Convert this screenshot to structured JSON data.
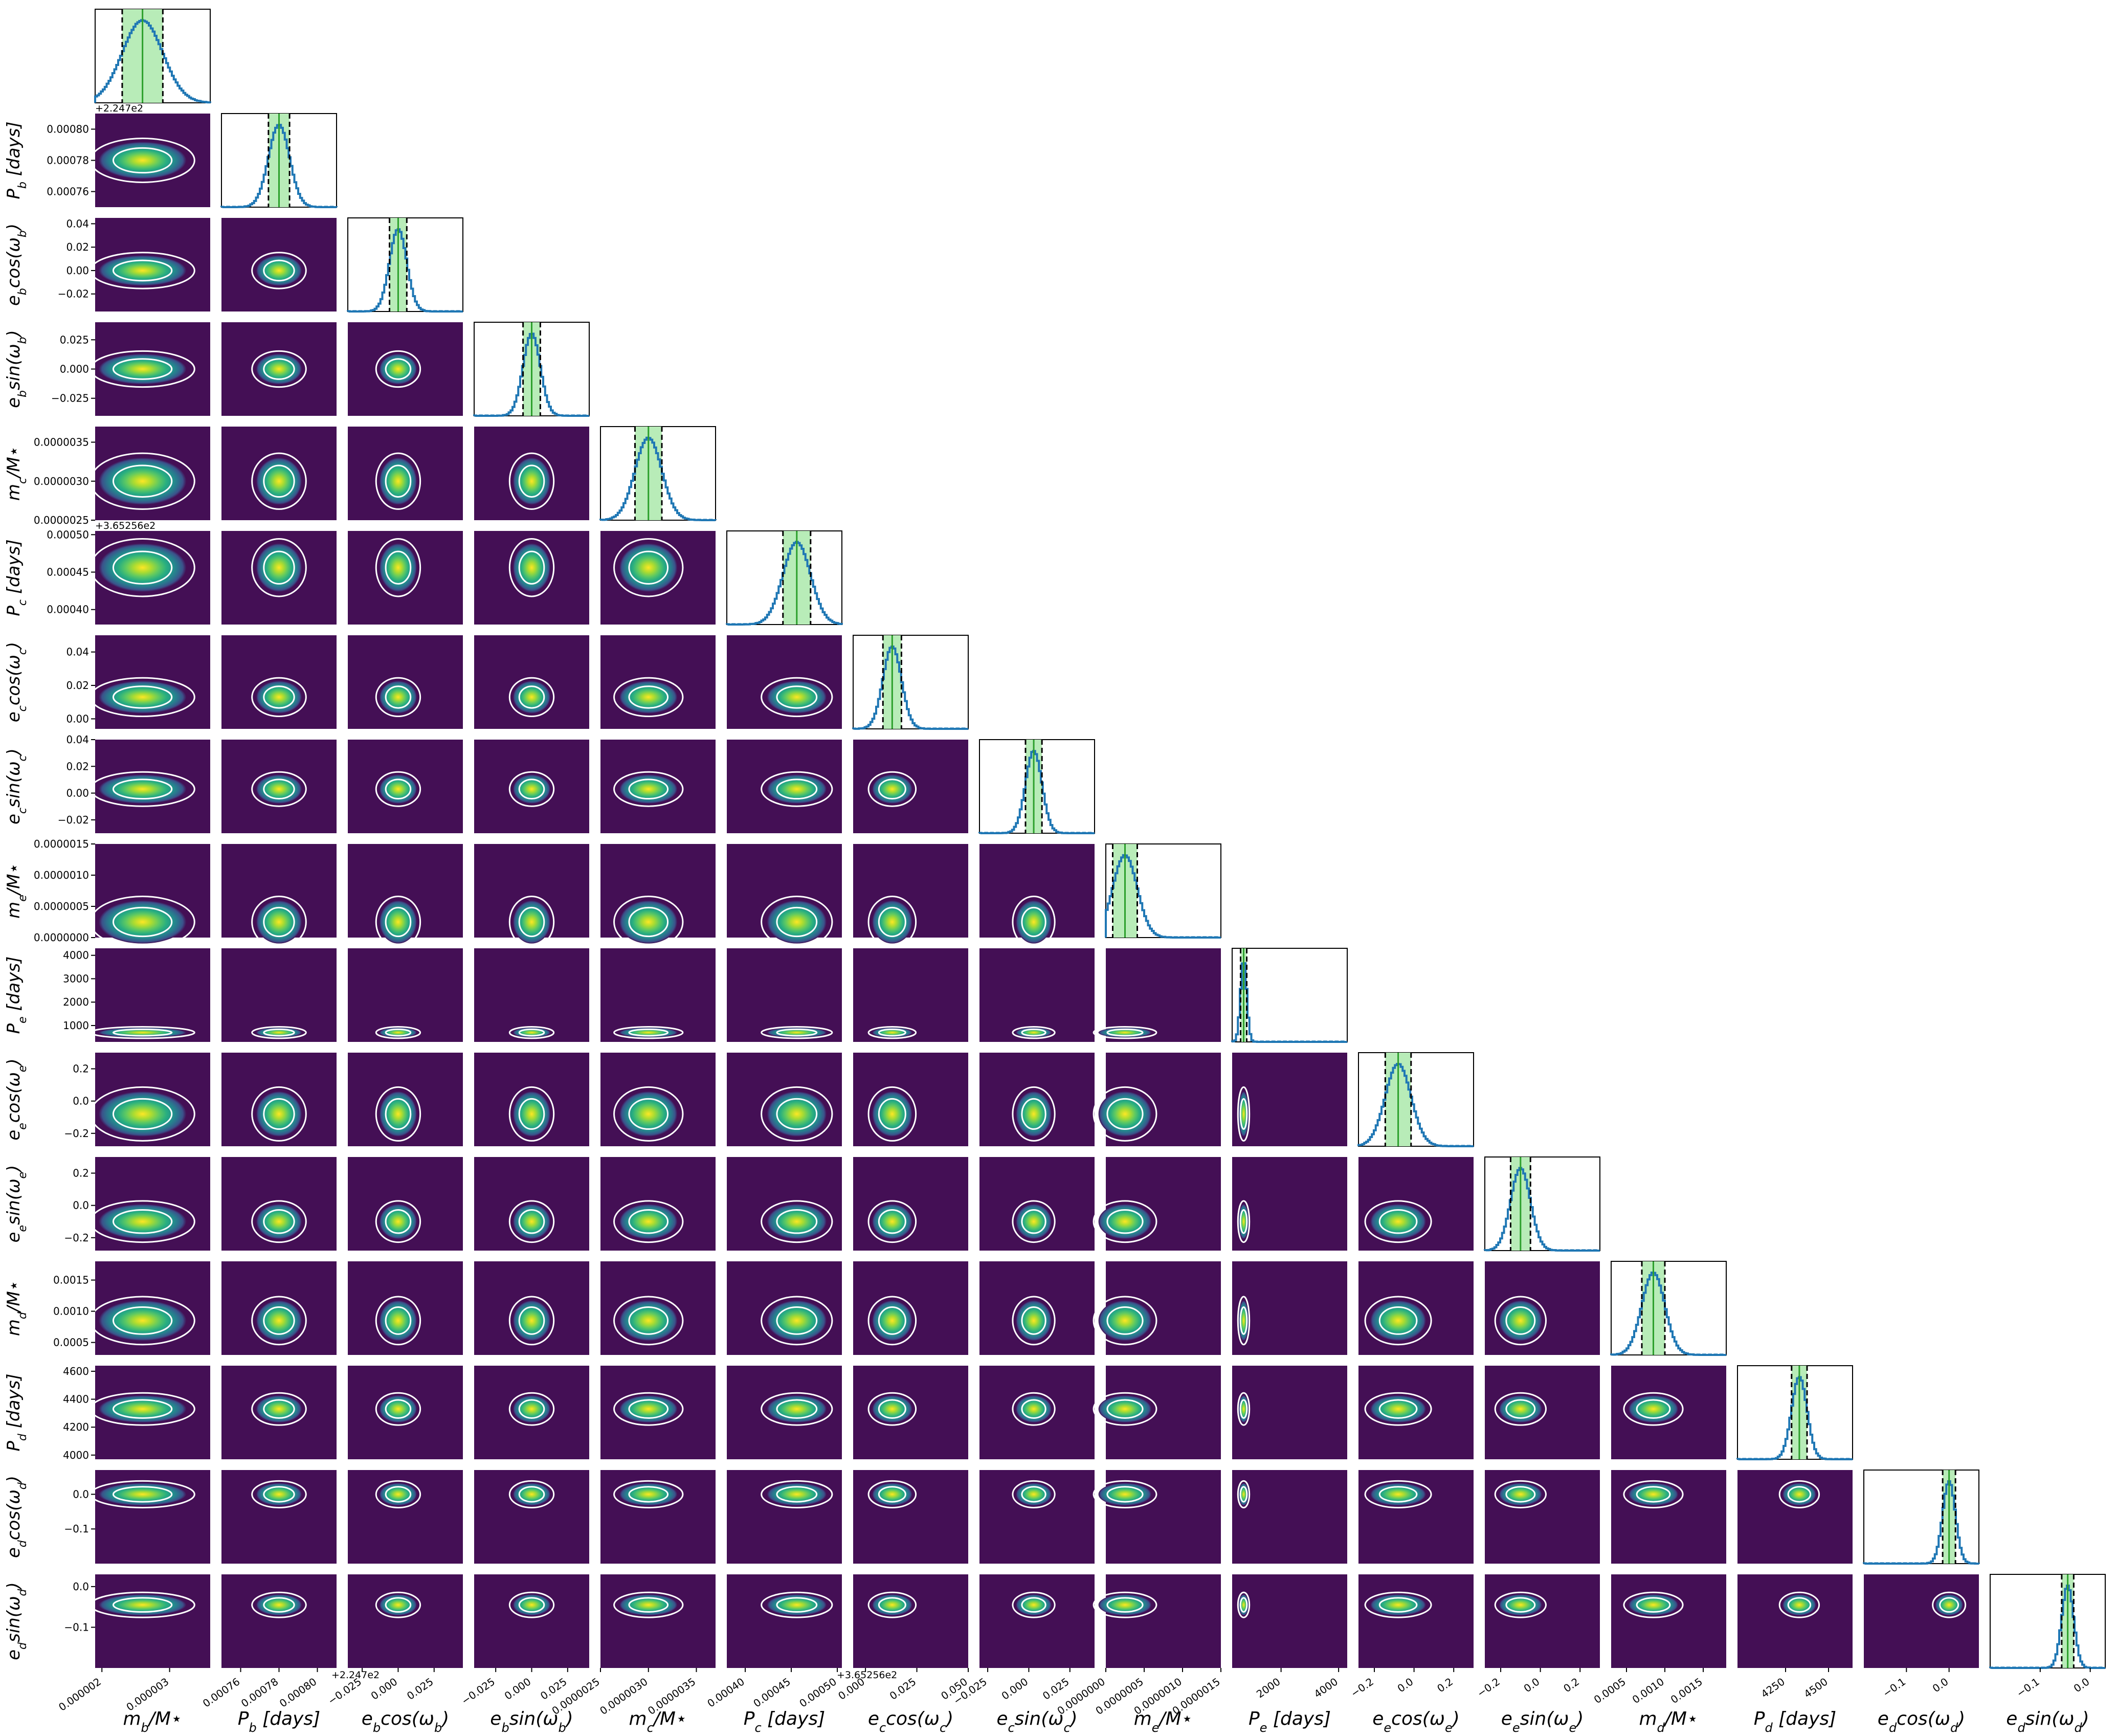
{
  "chart_data": {
    "type": "corner",
    "colors": {
      "density_background": "#440f55",
      "density_colormap": [
        "#440f55",
        "#472d7b",
        "#3b528b",
        "#2c728e",
        "#21918c",
        "#28ae80",
        "#5ec962",
        "#addc30",
        "#fde725"
      ],
      "contour": "#ffffff",
      "histogram_line": "#1f77b4",
      "credible_interval_fill": "#b8ecb8",
      "median_line": "#2ca02c",
      "quantile_line": "#000000"
    },
    "parameters": [
      {
        "label": "m_b/M_*",
        "display": {
          "base": "m",
          "sub": "b",
          "suffix": "/M⋆"
        },
        "center": 2.6e-06,
        "width": 3e-07,
        "range": [
          1.9e-06,
          3.6e-06
        ],
        "ticks": [
          "0.000002",
          "0.000003"
        ],
        "tick_values": [
          2e-06,
          3e-06
        ],
        "offset": ""
      },
      {
        "label": "P_b [days]",
        "display": {
          "base": "P",
          "sub": "b",
          "suffix": " [days]"
        },
        "center": 0.00078,
        "width": 5.5e-06,
        "range": [
          0.00075,
          0.00081
        ],
        "ticks": [
          "0.00076",
          "0.00078",
          "0.00080"
        ],
        "tick_values": [
          0.00076,
          0.00078,
          0.0008
        ],
        "offset": "+2.247e2"
      },
      {
        "label": "e_b cos(ω_b)",
        "display": {
          "base": "e",
          "sub": "b",
          "suffix": "cos(ω",
          "sub2": "b",
          "close": ")"
        },
        "center": 0.0,
        "width": 0.006,
        "range": [
          -0.035,
          0.045
        ],
        "ticks": [
          "−0.025",
          "0.000",
          "0.025"
        ],
        "tick_values": [
          -0.025,
          0.0,
          0.025
        ],
        "y_ticks": [
          "−0.02",
          "0.00",
          "0.02",
          "0.04"
        ],
        "y_tick_values": [
          -0.02,
          0.0,
          0.02,
          0.04
        ],
        "offset": ""
      },
      {
        "label": "e_b sin(ω_b)",
        "display": {
          "base": "e",
          "sub": "b",
          "suffix": "sin(ω",
          "sub2": "b",
          "close": ")"
        },
        "center": 0.0,
        "width": 0.006,
        "range": [
          -0.04,
          0.04
        ],
        "ticks": [
          "−0.025",
          "0.000",
          "0.025"
        ],
        "tick_values": [
          -0.025,
          0.0,
          0.025
        ],
        "offset": ""
      },
      {
        "label": "m_c/M_*",
        "display": {
          "base": "m",
          "sub": "c",
          "suffix": "/M⋆"
        },
        "center": 3e-06,
        "width": 1.4e-07,
        "range": [
          2.5e-06,
          3.7e-06
        ],
        "ticks": [
          "0.0000025",
          "0.0000030",
          "0.0000035"
        ],
        "tick_values": [
          2.5e-06,
          3e-06,
          3.5e-06
        ],
        "offset": ""
      },
      {
        "label": "P_c [days]",
        "display": {
          "base": "P",
          "sub": "c",
          "suffix": " [days]"
        },
        "center": 0.000456,
        "width": 1.5e-05,
        "range": [
          0.00038,
          0.000505
        ],
        "ticks": [
          "0.00040",
          "0.00045",
          "0.00050"
        ],
        "tick_values": [
          0.0004,
          0.00045,
          0.0005
        ],
        "offset": "+3.65256e2"
      },
      {
        "label": "e_c cos(ω_c)",
        "display": {
          "base": "e",
          "sub": "c",
          "suffix": "cos(ω",
          "sub2": "c",
          "close": ")"
        },
        "center": 0.013,
        "width": 0.0045,
        "range": [
          -0.006,
          0.05
        ],
        "ticks": [
          "0.000",
          "0.025",
          "0.050"
        ],
        "tick_values": [
          0.0,
          0.025,
          0.05
        ],
        "y_ticks": [
          "0.00",
          "0.02",
          "0.04"
        ],
        "y_tick_values": [
          0.0,
          0.02,
          0.04
        ],
        "offset": ""
      },
      {
        "label": "e_c sin(ω_c)",
        "display": {
          "base": "e",
          "sub": "c",
          "suffix": "sin(ω",
          "sub2": "c",
          "close": ")"
        },
        "center": 0.003,
        "width": 0.005,
        "range": [
          -0.03,
          0.04
        ],
        "ticks": [
          "−0.025",
          "0.000",
          "0.025"
        ],
        "tick_values": [
          -0.025,
          0.0,
          0.025
        ],
        "y_ticks": [
          "−0.02",
          "0.00",
          "0.02",
          "0.04"
        ],
        "y_tick_values": [
          -0.02,
          0.0,
          0.02,
          0.04
        ],
        "offset": ""
      },
      {
        "label": "m_e/M_*",
        "display": {
          "base": "m",
          "sub": "e",
          "suffix": "/M⋆"
        },
        "center": 2.5e-07,
        "width": 1.6e-07,
        "range": [
          0.0,
          1.5e-06
        ],
        "ticks": [
          "0.0000000",
          "0.0000005",
          "0.0000010",
          "0.0000015"
        ],
        "tick_values": [
          0.0,
          5e-07,
          1e-06,
          1.5e-06
        ],
        "offset": ""
      },
      {
        "label": "P_e [days]",
        "display": {
          "base": "P",
          "sub": "e",
          "suffix": " [days]"
        },
        "center": 700,
        "width": 28,
        "range": [
          300,
          4300
        ],
        "ticks": [
          "2000",
          "4000"
        ],
        "tick_values": [
          2000,
          4000
        ],
        "y_ticks": [
          "1000",
          "2000",
          "3000",
          "4000"
        ],
        "y_tick_values": [
          1000,
          2000,
          3000,
          4000
        ],
        "offset": ""
      },
      {
        "label": "e_e cos(ω_e)",
        "display": {
          "base": "e",
          "sub": "e",
          "suffix": "cos(ω",
          "sub2": "e",
          "close": ")"
        },
        "center": -0.08,
        "width": 0.065,
        "range": [
          -0.28,
          0.3
        ],
        "ticks": [
          "−0.2",
          "0.0",
          "0.2"
        ],
        "tick_values": [
          -0.2,
          0.0,
          0.2
        ],
        "offset": ""
      },
      {
        "label": "e_e sin(ω_e)",
        "display": {
          "base": "e",
          "sub": "e",
          "suffix": "sin(ω",
          "sub2": "e",
          "close": ")"
        },
        "center": -0.1,
        "width": 0.05,
        "range": [
          -0.28,
          0.3
        ],
        "ticks": [
          "−0.2",
          "0.0",
          "0.2"
        ],
        "tick_values": [
          -0.2,
          0.0,
          0.2
        ],
        "offset": ""
      },
      {
        "label": "m_d/M_*",
        "display": {
          "base": "m",
          "sub": "d",
          "suffix": "/M⋆"
        },
        "center": 0.00085,
        "width": 0.00015,
        "range": [
          0.0003,
          0.0018
        ],
        "ticks": [
          "0.0005",
          "0.0010",
          "0.0015"
        ],
        "tick_values": [
          0.0005,
          0.001,
          0.0015
        ],
        "offset": ""
      },
      {
        "label": "P_d [days]",
        "display": {
          "base": "P",
          "sub": "d",
          "suffix": " [days]"
        },
        "center": 4330,
        "width": 45,
        "range": [
          3970,
          4640
        ],
        "ticks": [
          "4250",
          "4500"
        ],
        "tick_values": [
          4250,
          4500
        ],
        "y_ticks": [
          "4000",
          "4200",
          "4400",
          "4600"
        ],
        "y_tick_values": [
          4000,
          4200,
          4400,
          4600
        ],
        "offset": ""
      },
      {
        "label": "e_d cos(ω_d)",
        "display": {
          "base": "e",
          "sub": "d",
          "suffix": "cos(ω",
          "sub2": "d",
          "close": ")"
        },
        "center": 0.0,
        "width": 0.015,
        "range": [
          -0.2,
          0.07
        ],
        "ticks": [
          "−0.1",
          "0.0"
        ],
        "tick_values": [
          -0.1,
          0.0
        ],
        "offset": ""
      },
      {
        "label": "e_d sin(ω_d)",
        "display": {
          "base": "e",
          "sub": "d",
          "suffix": "sin(ω",
          "sub2": "d",
          "close": ")"
        },
        "center": -0.045,
        "width": 0.012,
        "range": [
          -0.2,
          0.03
        ],
        "ticks": [
          "0.0",
          "−0.1"
        ],
        "tick_values": [
          0.0,
          -0.1
        ],
        "offset": ""
      }
    ],
    "histogram_type": "step",
    "credible_interval": "shaded band between dashed quantile lines",
    "lower_panels": "2D density with contours",
    "grid": false,
    "legend": "none"
  }
}
